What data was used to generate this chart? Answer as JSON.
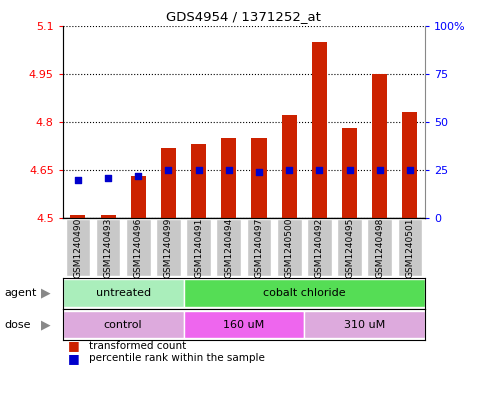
{
  "title": "GDS4954 / 1371252_at",
  "samples": [
    "GSM1240490",
    "GSM1240493",
    "GSM1240496",
    "GSM1240499",
    "GSM1240491",
    "GSM1240494",
    "GSM1240497",
    "GSM1240500",
    "GSM1240492",
    "GSM1240495",
    "GSM1240498",
    "GSM1240501"
  ],
  "transformed_count": [
    4.51,
    4.51,
    4.63,
    4.72,
    4.73,
    4.75,
    4.75,
    4.82,
    5.05,
    4.78,
    4.95,
    4.83
  ],
  "percentile_rank": [
    20,
    21,
    22,
    25,
    25,
    25,
    24,
    25,
    25,
    25,
    25,
    25
  ],
  "ymin": 4.5,
  "ymax": 5.1,
  "yticks": [
    4.5,
    4.65,
    4.8,
    4.95,
    5.1
  ],
  "ytick_labels": [
    "4.5",
    "4.65",
    "4.8",
    "4.95",
    "5.1"
  ],
  "y2ticks": [
    0,
    25,
    50,
    75,
    100
  ],
  "y2tick_labels": [
    "0",
    "25",
    "50",
    "75",
    "100%"
  ],
  "agent_groups": [
    {
      "label": "untreated",
      "start": 0,
      "end": 4,
      "color": "#AAEEBB"
    },
    {
      "label": "cobalt chloride",
      "start": 4,
      "end": 12,
      "color": "#55DD55"
    }
  ],
  "dose_groups": [
    {
      "label": "control",
      "start": 0,
      "end": 4,
      "color": "#DDAADD"
    },
    {
      "label": "160 uM",
      "start": 4,
      "end": 8,
      "color": "#EE66EE"
    },
    {
      "label": "310 uM",
      "start": 8,
      "end": 12,
      "color": "#DDAADD"
    }
  ],
  "bar_color": "#CC2200",
  "dot_color": "#0000CC",
  "bar_width": 0.5,
  "legend_items": [
    {
      "label": "transformed count",
      "color": "#CC2200"
    },
    {
      "label": "percentile rank within the sample",
      "color": "#0000CC"
    }
  ],
  "background_color": "#FFFFFF",
  "grey_box_color": "#C8C8C8",
  "separator_color": "#AAAAAA"
}
